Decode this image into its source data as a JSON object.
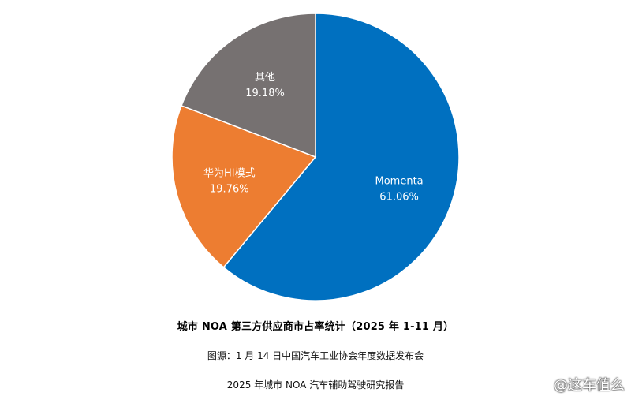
{
  "chart_data": {
    "type": "pie",
    "title": "城市 NOA 第三方供应商市占率统计（2025 年 1-11 月）",
    "start_angle_deg": 0,
    "direction": "clockwise",
    "slices": [
      {
        "name": "Momenta",
        "value": 61.06,
        "label": "61.06%",
        "color": "#0070C0"
      },
      {
        "name": "华为HI模式",
        "value": 19.76,
        "label": "19.76%",
        "color": "#ED7D31"
      },
      {
        "name": "其他",
        "value": 19.18,
        "label": "19.18%",
        "color": "#767171"
      }
    ]
  },
  "captions": {
    "source": "图源：1 月 14 日中国汽车工业协会年度数据发布会",
    "report": "2025 年城市  NOA  汽车辅助驾驶研究报告"
  },
  "watermark": "@这车值么"
}
